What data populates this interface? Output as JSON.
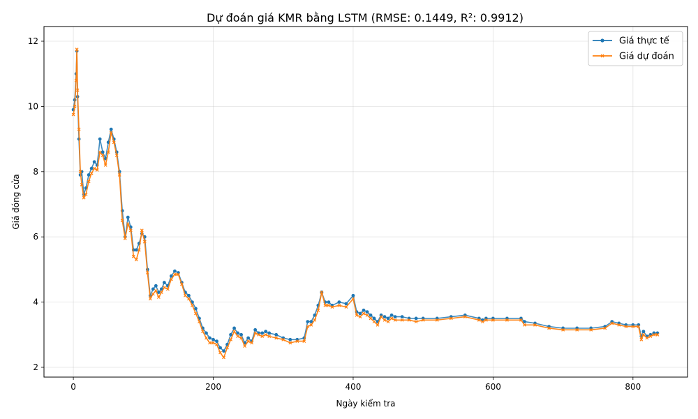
{
  "chart_data": {
    "type": "line",
    "title": "Dự đoán giá KMR bằng LSTM (RMSE: 0.1449, R²: 0.9912)",
    "xlabel": "Ngày kiểm tra",
    "ylabel": "Giá đóng cửa",
    "xlim": [
      -42,
      878
    ],
    "ylim": [
      1.7,
      12.45
    ],
    "xticks": [
      0,
      200,
      400,
      600,
      800
    ],
    "yticks": [
      2,
      4,
      6,
      8,
      10,
      12
    ],
    "grid": true,
    "legend_position": "top-right",
    "colors": {
      "actual": "#1f77b4",
      "predicted": "#ff7f0e"
    },
    "series": [
      {
        "name": "Giá thực tế",
        "marker": "circle",
        "x": [
          0,
          2,
          4,
          5,
          6,
          8,
          10,
          12,
          15,
          18,
          22,
          26,
          30,
          34,
          38,
          42,
          46,
          50,
          54,
          58,
          62,
          66,
          70,
          74,
          78,
          82,
          86,
          90,
          94,
          98,
          102,
          106,
          110,
          114,
          118,
          122,
          126,
          130,
          135,
          140,
          145,
          150,
          155,
          160,
          165,
          170,
          175,
          180,
          185,
          190,
          195,
          200,
          205,
          210,
          215,
          220,
          225,
          230,
          235,
          240,
          245,
          250,
          255,
          260,
          265,
          270,
          275,
          280,
          290,
          300,
          310,
          320,
          330,
          335,
          340,
          345,
          350,
          355,
          360,
          365,
          370,
          380,
          390,
          400,
          405,
          410,
          415,
          420,
          425,
          430,
          435,
          440,
          445,
          450,
          455,
          460,
          470,
          480,
          490,
          500,
          520,
          540,
          560,
          580,
          585,
          590,
          600,
          620,
          640,
          645,
          660,
          680,
          700,
          720,
          740,
          760,
          770,
          780,
          790,
          800,
          808,
          812,
          815,
          820,
          825,
          830,
          835
        ],
        "values": [
          9.9,
          10.2,
          11.0,
          11.7,
          10.3,
          9.0,
          7.9,
          8.0,
          7.3,
          7.5,
          7.9,
          8.1,
          8.3,
          8.2,
          9.0,
          8.6,
          8.4,
          8.9,
          9.3,
          9.0,
          8.6,
          8.0,
          6.8,
          6.0,
          6.6,
          6.3,
          5.6,
          5.6,
          5.8,
          6.1,
          6.0,
          5.0,
          4.2,
          4.4,
          4.5,
          4.3,
          4.4,
          4.6,
          4.5,
          4.8,
          4.95,
          4.9,
          4.6,
          4.3,
          4.2,
          4.0,
          3.8,
          3.5,
          3.2,
          3.05,
          2.9,
          2.85,
          2.8,
          2.6,
          2.5,
          2.7,
          3.0,
          3.2,
          3.05,
          3.0,
          2.75,
          2.9,
          2.8,
          3.15,
          3.05,
          3.05,
          3.1,
          3.05,
          3.0,
          2.9,
          2.85,
          2.85,
          2.9,
          3.4,
          3.4,
          3.6,
          3.9,
          4.3,
          4.0,
          4.0,
          3.9,
          4.0,
          3.95,
          4.2,
          3.7,
          3.65,
          3.75,
          3.7,
          3.6,
          3.5,
          3.4,
          3.6,
          3.55,
          3.5,
          3.6,
          3.55,
          3.55,
          3.5,
          3.5,
          3.5,
          3.5,
          3.55,
          3.6,
          3.5,
          3.45,
          3.5,
          3.5,
          3.5,
          3.5,
          3.4,
          3.35,
          3.25,
          3.2,
          3.2,
          3.2,
          3.25,
          3.4,
          3.35,
          3.3,
          3.3,
          3.3,
          2.95,
          3.1,
          2.95,
          3.0,
          3.05,
          3.05
        ]
      },
      {
        "name": "Giá dự đoán",
        "marker": "x",
        "x": [
          0,
          2,
          4,
          5,
          6,
          8,
          10,
          12,
          15,
          18,
          22,
          26,
          30,
          34,
          38,
          42,
          46,
          50,
          54,
          58,
          62,
          66,
          70,
          74,
          78,
          82,
          86,
          90,
          94,
          98,
          102,
          106,
          110,
          114,
          118,
          122,
          126,
          130,
          135,
          140,
          145,
          150,
          155,
          160,
          165,
          170,
          175,
          180,
          185,
          190,
          195,
          200,
          205,
          210,
          215,
          220,
          225,
          230,
          235,
          240,
          245,
          250,
          255,
          260,
          265,
          270,
          275,
          280,
          290,
          300,
          310,
          320,
          330,
          335,
          340,
          345,
          350,
          355,
          360,
          365,
          370,
          380,
          390,
          400,
          405,
          410,
          415,
          420,
          425,
          430,
          435,
          440,
          445,
          450,
          455,
          460,
          470,
          480,
          490,
          500,
          520,
          540,
          560,
          580,
          585,
          590,
          600,
          620,
          640,
          645,
          660,
          680,
          700,
          720,
          740,
          760,
          770,
          780,
          790,
          800,
          808,
          812,
          815,
          820,
          825,
          830,
          835
        ],
        "values": [
          9.75,
          10.0,
          10.8,
          11.75,
          10.5,
          9.3,
          8.0,
          7.6,
          7.2,
          7.3,
          7.7,
          7.95,
          8.1,
          8.05,
          8.6,
          8.5,
          8.2,
          8.6,
          9.2,
          8.9,
          8.5,
          7.9,
          6.5,
          5.95,
          6.4,
          6.2,
          5.4,
          5.3,
          5.6,
          6.2,
          5.85,
          4.9,
          4.1,
          4.25,
          4.35,
          4.15,
          4.3,
          4.45,
          4.4,
          4.7,
          4.85,
          4.85,
          4.55,
          4.2,
          4.1,
          3.9,
          3.65,
          3.4,
          3.1,
          2.9,
          2.75,
          2.75,
          2.7,
          2.45,
          2.3,
          2.6,
          2.85,
          3.1,
          2.95,
          2.9,
          2.65,
          2.8,
          2.75,
          3.05,
          3.0,
          2.95,
          3.0,
          2.95,
          2.9,
          2.85,
          2.75,
          2.8,
          2.8,
          3.25,
          3.3,
          3.45,
          3.75,
          4.3,
          3.9,
          3.9,
          3.85,
          3.9,
          3.85,
          4.1,
          3.6,
          3.55,
          3.65,
          3.6,
          3.5,
          3.4,
          3.3,
          3.55,
          3.45,
          3.4,
          3.5,
          3.45,
          3.45,
          3.45,
          3.4,
          3.45,
          3.45,
          3.5,
          3.55,
          3.45,
          3.4,
          3.45,
          3.45,
          3.45,
          3.45,
          3.3,
          3.3,
          3.2,
          3.15,
          3.15,
          3.15,
          3.2,
          3.35,
          3.3,
          3.25,
          3.25,
          3.25,
          2.85,
          3.0,
          2.9,
          2.95,
          3.0,
          3.0
        ]
      }
    ]
  }
}
